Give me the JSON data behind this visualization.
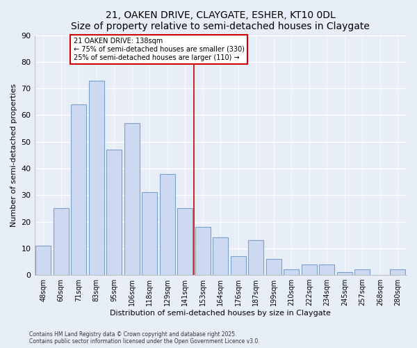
{
  "title": "21, OAKEN DRIVE, CLAYGATE, ESHER, KT10 0DL",
  "subtitle": "Size of property relative to semi-detached houses in Claygate",
  "xlabel": "Distribution of semi-detached houses by size in Claygate",
  "ylabel": "Number of semi-detached properties",
  "bar_labels": [
    "48sqm",
    "60sqm",
    "71sqm",
    "83sqm",
    "95sqm",
    "106sqm",
    "118sqm",
    "129sqm",
    "141sqm",
    "153sqm",
    "164sqm",
    "176sqm",
    "187sqm",
    "199sqm",
    "210sqm",
    "222sqm",
    "234sqm",
    "245sqm",
    "257sqm",
    "268sqm",
    "280sqm"
  ],
  "bar_values": [
    11,
    25,
    64,
    73,
    47,
    57,
    31,
    38,
    25,
    18,
    14,
    7,
    13,
    6,
    2,
    4,
    4,
    1,
    2,
    0,
    2
  ],
  "bar_color": "#ccd9f0",
  "bar_edge_color": "#7aa0cc",
  "ylim": [
    0,
    90
  ],
  "yticks": [
    0,
    10,
    20,
    30,
    40,
    50,
    60,
    70,
    80,
    90
  ],
  "vline_x": 8.5,
  "vline_color": "#cc0000",
  "annotation_title": "21 OAKEN DRIVE: 138sqm",
  "annotation_line1": "← 75% of semi-detached houses are smaller (330)",
  "annotation_line2": "25% of semi-detached houses are larger (110) →",
  "annotation_box_color": "#ffffff",
  "annotation_box_edge": "#cc0000",
  "footnote1": "Contains HM Land Registry data © Crown copyright and database right 2025.",
  "footnote2": "Contains public sector information licensed under the Open Government Licence v3.0.",
  "bg_color": "#e8eef8",
  "grid_color": "#ffffff",
  "title_fontsize": 10,
  "subtitle_fontsize": 9,
  "axis_label_fontsize": 8,
  "tick_fontsize": 7
}
